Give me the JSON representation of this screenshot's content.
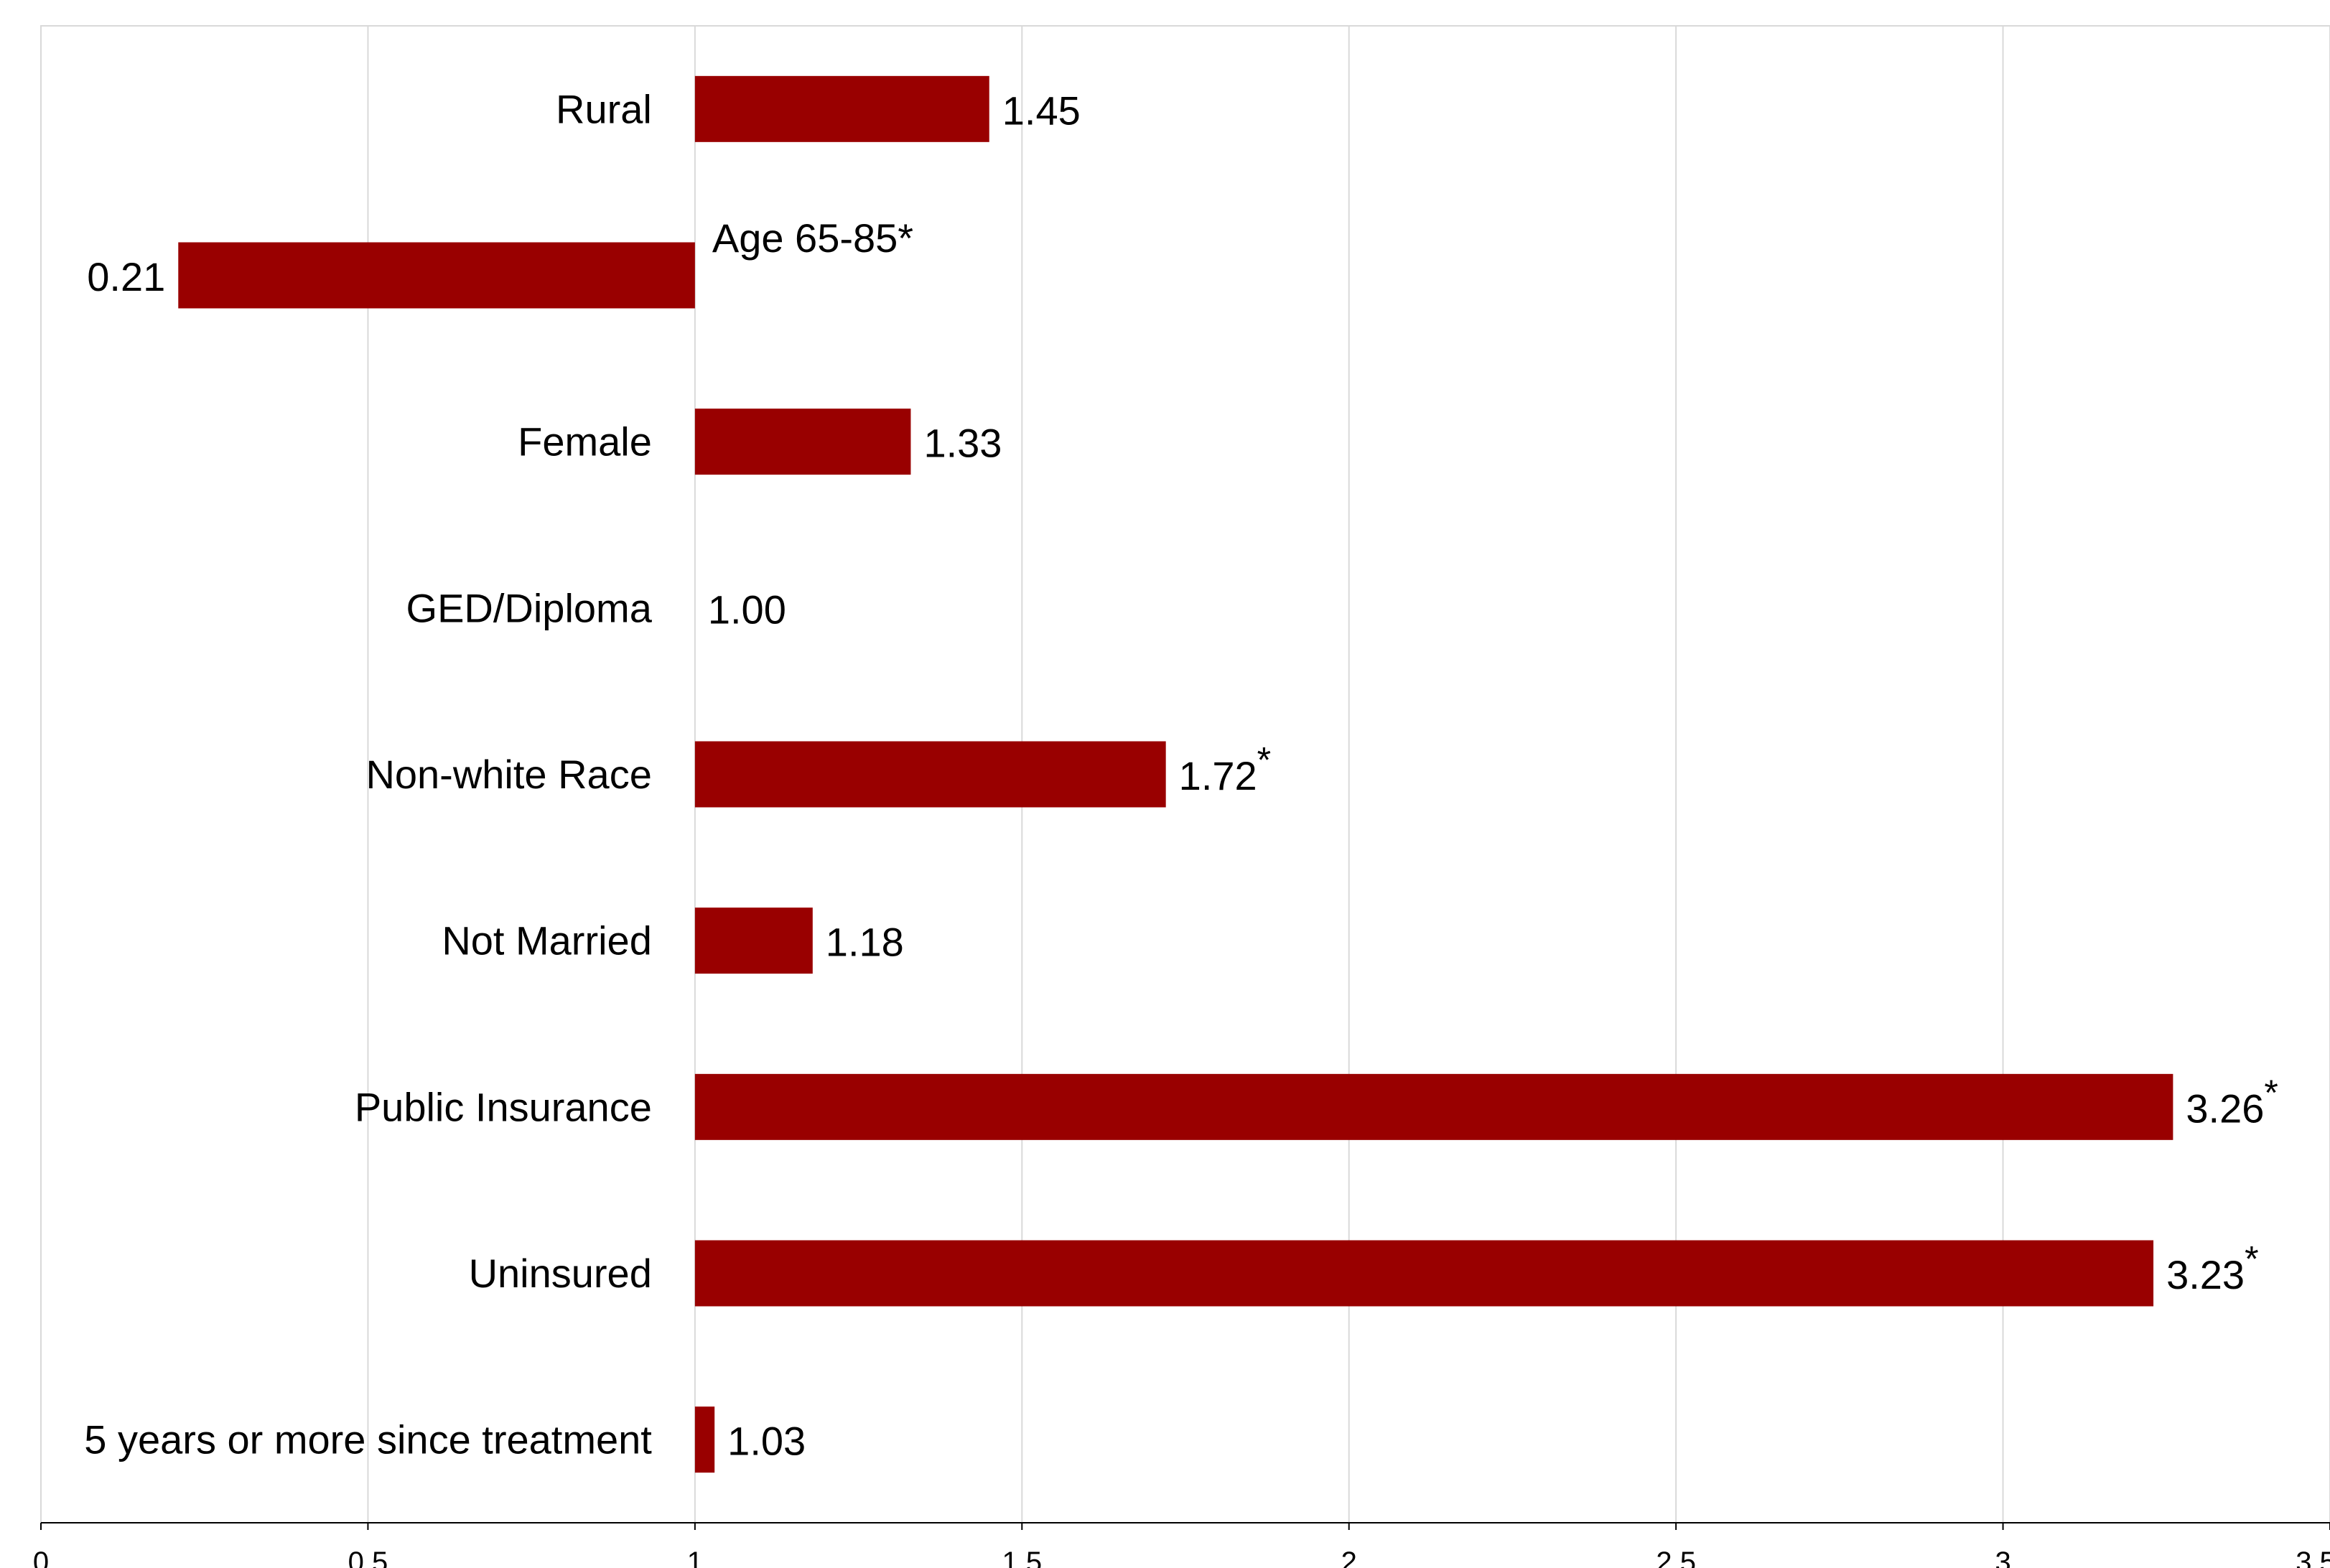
{
  "chart_data": {
    "type": "bar",
    "orientation": "horizontal",
    "baseline": 1,
    "categories": [
      "Rural",
      "Age 65-85*",
      "Female",
      "GED/Diploma",
      "Non-white Race",
      "Not Married",
      "Public Insurance",
      "Uninsured",
      "5 years or more since treatment"
    ],
    "values": [
      1.45,
      0.21,
      1.33,
      1.0,
      1.72,
      1.18,
      3.26,
      3.23,
      1.03
    ],
    "value_labels": [
      "1.45",
      "0.21",
      "1.33",
      "1.00",
      "1.72",
      "1.18",
      "3.26",
      "3.23",
      "1.03"
    ],
    "significant": [
      false,
      false,
      false,
      false,
      true,
      false,
      true,
      true,
      false
    ],
    "significance_marker": "*",
    "x_ticks": [
      "0",
      "0.5",
      "1",
      "1.5",
      "2",
      "2.5",
      "3",
      "3.5"
    ],
    "xlim": [
      0,
      3.5
    ],
    "grid": true,
    "colors": {
      "bar": "#990000",
      "grid": "#d9d9d9",
      "axis": "#000000",
      "frame": "#d9d9d9"
    }
  }
}
